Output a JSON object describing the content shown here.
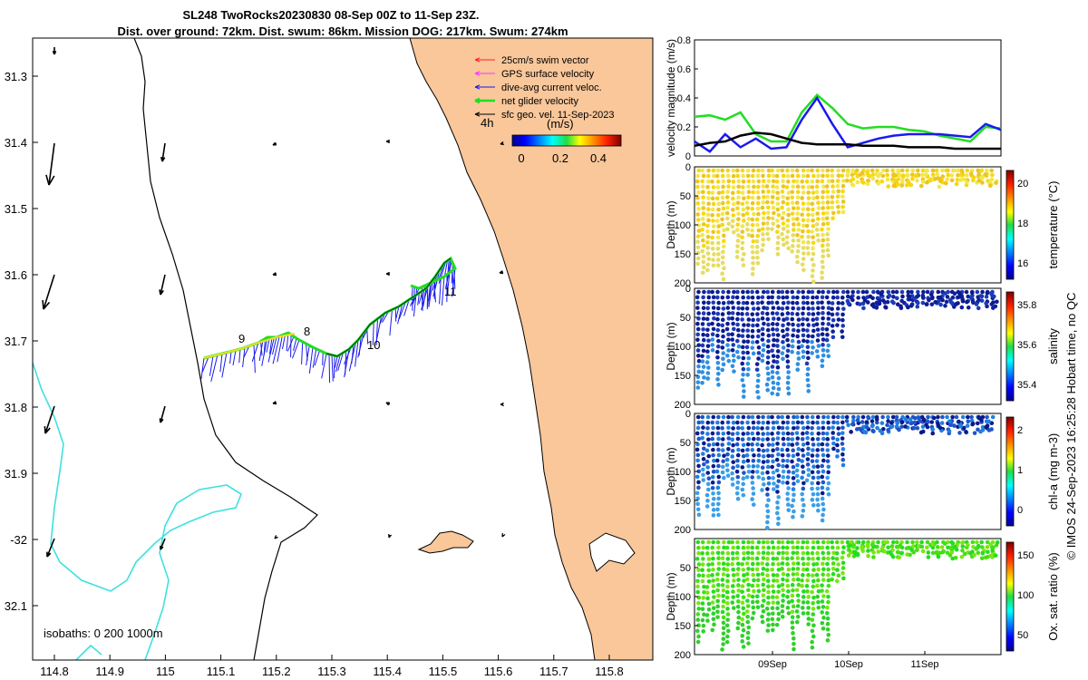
{
  "title": {
    "line1": "SL248 TwoRocks20230830 08-Sep 00Z to 11-Sep 23Z.",
    "line2": "Dist. over ground: 72km. Dist. swum: 86km. Mission DOG: 217km. Swum: 274km"
  },
  "watermark": "© IMOS 24-Sep-2023 16:25:28 Hobart time, no QC",
  "colors": {
    "land": "#f9c79a",
    "isobath200": "#000000",
    "isobath1000": "#3fe0e0",
    "green": "#22dd22",
    "blue": "#1a1aee",
    "black": "#000000"
  },
  "map": {
    "lon_ticks": [
      "114.8",
      "114.9",
      "115",
      "115.1",
      "115.2",
      "115.3",
      "115.4",
      "115.5",
      "115.6",
      "115.7",
      "115.8"
    ],
    "lat_ticks": [
      "31.3",
      "31.4",
      "31.5",
      "31.6",
      "31.7",
      "31.8",
      "31.9",
      "-32",
      "32.1"
    ],
    "legend": {
      "items": [
        {
          "label": "25cm/s swim vector",
          "color": "#ff2020"
        },
        {
          "label": "GPS surface velocity",
          "color": "#ff30ff"
        },
        {
          "label": "dive-avg current veloc.",
          "color": "#1a1aee"
        },
        {
          "label": "net glider velocity",
          "color": "#22dd22"
        },
        {
          "label": "sfc geo. vel. 11-Sep-2023",
          "color": "#000000"
        }
      ],
      "four_h": "4h"
    },
    "colorbar": {
      "title": "(m/s)",
      "ticks": [
        "0",
        "0.2",
        "0.4"
      ]
    },
    "day_labels": [
      "8",
      "9",
      "10",
      "11"
    ],
    "isobaths": "isobaths: 0   200  1000m"
  },
  "chart_data": [
    {
      "type": "line",
      "title": "",
      "xlabel": "",
      "ylabel": "velocity magnitude (m/s)",
      "ylim": [
        0,
        0.8
      ],
      "yticks": [
        "0",
        "0.2",
        "0.4",
        "0.6",
        "0.8"
      ],
      "x": [
        0,
        0.05,
        0.1,
        0.15,
        0.2,
        0.25,
        0.3,
        0.35,
        0.4,
        0.45,
        0.5,
        0.55,
        0.6,
        0.65,
        0.7,
        0.75,
        0.8,
        0.85,
        0.9,
        0.95,
        1.0
      ],
      "series": [
        {
          "name": "net glider velocity",
          "color": "#22dd22",
          "values": [
            0.27,
            0.28,
            0.25,
            0.3,
            0.15,
            0.1,
            0.1,
            0.3,
            0.42,
            0.33,
            0.22,
            0.19,
            0.2,
            0.2,
            0.18,
            0.17,
            0.14,
            0.12,
            0.1,
            0.2,
            0.19
          ]
        },
        {
          "name": "dive-avg current",
          "color": "#1a1aee",
          "values": [
            0.1,
            0.03,
            0.15,
            0.06,
            0.12,
            0.05,
            0.06,
            0.25,
            0.4,
            0.22,
            0.06,
            0.09,
            0.12,
            0.14,
            0.15,
            0.15,
            0.15,
            0.14,
            0.13,
            0.22,
            0.18
          ]
        },
        {
          "name": "sfc geo. vel.",
          "color": "#000000",
          "values": [
            0.07,
            0.09,
            0.1,
            0.14,
            0.16,
            0.15,
            0.12,
            0.09,
            0.08,
            0.08,
            0.08,
            0.07,
            0.07,
            0.07,
            0.06,
            0.06,
            0.06,
            0.05,
            0.05,
            0.05,
            0.05
          ]
        }
      ]
    },
    {
      "type": "scatter",
      "ylabel": "Depth (m)",
      "yticks": [
        "0",
        "50",
        "100",
        "150",
        "200"
      ],
      "colorbar_label": "temperature (°C)",
      "colorbar_ticks": [
        "16",
        "18",
        "20"
      ]
    },
    {
      "type": "scatter",
      "ylabel": "Depth (m)",
      "yticks": [
        "0",
        "50",
        "100",
        "150",
        "200"
      ],
      "colorbar_label": "salinity",
      "colorbar_ticks": [
        "35.4",
        "35.6",
        "35.8"
      ]
    },
    {
      "type": "scatter",
      "ylabel": "Depth (m)",
      "yticks": [
        "0",
        "50",
        "100",
        "150",
        "200"
      ],
      "colorbar_label": "chl-a (mg m-3)",
      "colorbar_ticks": [
        "0",
        "1",
        "2"
      ]
    },
    {
      "type": "scatter",
      "ylabel": "Depth (m)",
      "yticks": [
        "50",
        "100",
        "150",
        "200"
      ],
      "colorbar_label": "Ox. sat. ratio (%)",
      "colorbar_ticks": [
        "50",
        "100",
        "150"
      ],
      "xticks": [
        "09Sep",
        "10Sep",
        "11Sep"
      ]
    }
  ]
}
